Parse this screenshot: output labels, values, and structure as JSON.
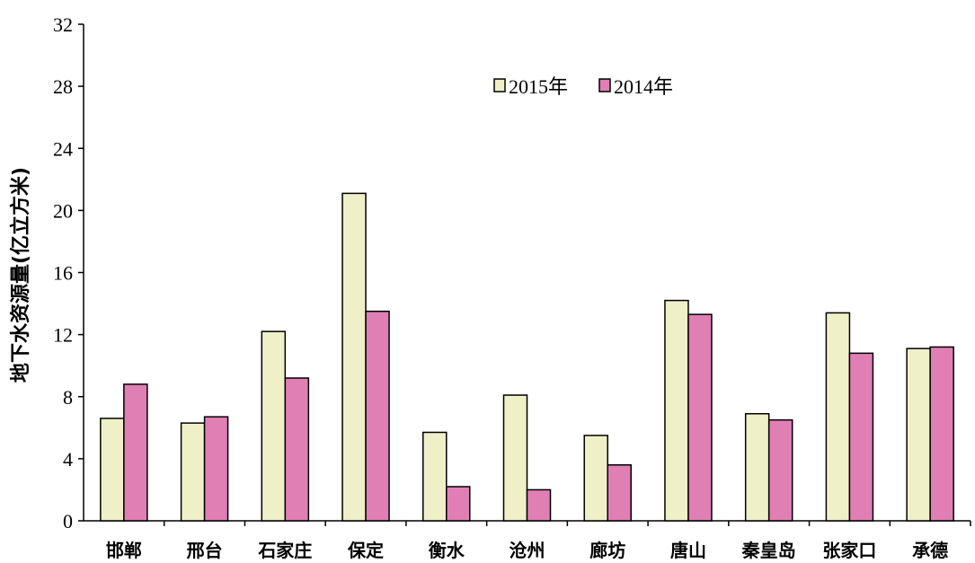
{
  "chart_data": {
    "type": "bar",
    "ylabel": "地下水资源量(亿立方米)",
    "xlabel": "",
    "ylim": [
      0,
      32
    ],
    "yticks": [
      "0",
      "4",
      "8",
      "12",
      "16",
      "20",
      "24",
      "28",
      "32"
    ],
    "grid": false,
    "legend_position": "top-center",
    "categories": [
      "邯郸",
      "邢台",
      "石家庄",
      "保定",
      "衡水",
      "沧州",
      "廊坊",
      "唐山",
      "秦皇岛",
      "张家口",
      "承德"
    ],
    "series": [
      {
        "name": "2015年",
        "color": "#f0f0c8",
        "values": [
          6.6,
          6.3,
          12.2,
          21.1,
          5.7,
          8.1,
          5.5,
          14.2,
          6.9,
          13.4,
          11.1
        ]
      },
      {
        "name": "2014年",
        "color": "#e07fb4",
        "values": [
          8.8,
          6.7,
          9.2,
          13.5,
          2.2,
          2.0,
          3.6,
          13.3,
          6.5,
          10.8,
          11.2
        ]
      }
    ]
  }
}
